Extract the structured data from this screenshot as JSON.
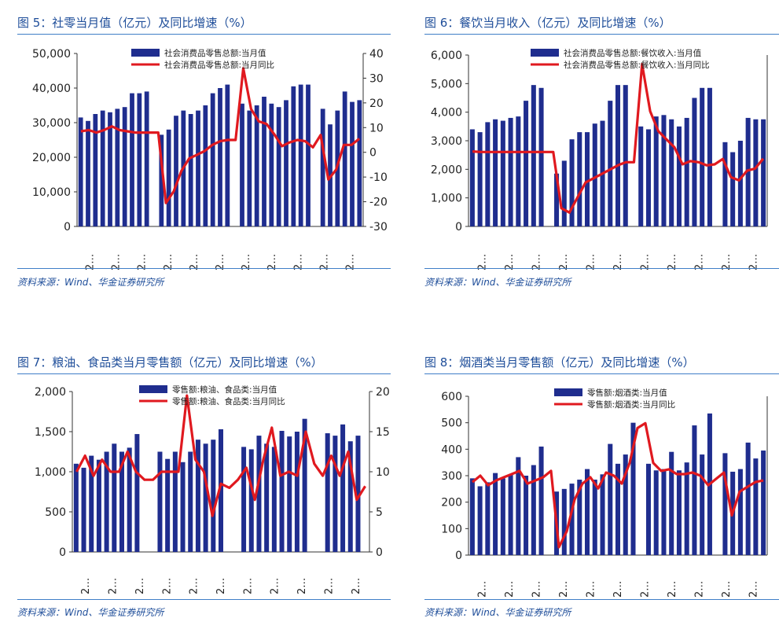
{
  "colors": {
    "bar": "#1f2d8e",
    "line": "#e0191f",
    "title": "#1f4e9a",
    "rule": "#3f7ec7",
    "axis": "#333333"
  },
  "source_text": "资料来源：Wind、华金证券研究所",
  "panels": [
    {
      "title": "图 5：社零当月值（亿元）及同比增速（%）",
      "source": "资料来源：Wind、华金证券研究所",
      "chart_data": {
        "type": "bar",
        "legend": [
          "社会消费品零售总额:当月值",
          "社会消费品零售总额:当月同比"
        ],
        "x_ticks": [
          "2…",
          "2…",
          "2…",
          "2…",
          "2…",
          "2…",
          "2…",
          "2…",
          "2…",
          "2…",
          "2…"
        ],
        "y_left": {
          "min": 0,
          "max": 50000,
          "ticks": [
            "0",
            "10,000",
            "20,000",
            "30,000",
            "40,000",
            "50,000"
          ]
        },
        "y_right": {
          "min": -30,
          "max": 40,
          "ticks": [
            "-30",
            "-20",
            "-10",
            "0",
            "10",
            "20",
            "30",
            "40"
          ]
        },
        "bars": [
          31500,
          30500,
          32500,
          33500,
          33000,
          34000,
          34500,
          38500,
          38500,
          39000,
          0,
          26500,
          28000,
          32000,
          33500,
          32500,
          33500,
          35000,
          38500,
          40000,
          41000,
          0,
          35500,
          33500,
          35000,
          37500,
          35500,
          34500,
          36500,
          40500,
          41000,
          41000,
          0,
          34000,
          29500,
          33500,
          39000,
          36000,
          36500
        ],
        "line": [
          8.5,
          9,
          8,
          9,
          10.5,
          9,
          8.5,
          8,
          8,
          8,
          8,
          -20.5,
          -15.8,
          -7.5,
          -2.5,
          -1,
          0.5,
          3,
          4.5,
          5,
          5,
          34,
          17.5,
          12.5,
          11.5,
          7.3,
          2.5,
          4,
          5,
          4.5,
          2,
          7,
          -11,
          -7,
          3,
          3,
          5.5
        ]
      }
    },
    {
      "title": "图 6：餐饮当月收入（亿元）及同比增速（%）",
      "source": "资料来源：Wind、华金证券研究所",
      "chart_data": {
        "type": "bar",
        "legend": [
          "社会消费品零售总额:餐饮收入:当月值",
          "社会消费品零售总额:餐饮收入:当月同比"
        ],
        "x_ticks": [
          "2…",
          "2…",
          "2…",
          "2…",
          "2…",
          "2…",
          "2…",
          "2…",
          "2…",
          "2…",
          "2…"
        ],
        "y_left": {
          "min": 0,
          "max": 6000,
          "ticks": [
            "0",
            "1,000",
            "2,000",
            "3,000",
            "4,000",
            "5,000",
            "6,000"
          ]
        },
        "y_right": {
          "min": -60,
          "max": 100,
          "ticks": []
        },
        "bars": [
          3400,
          3300,
          3650,
          3750,
          3700,
          3800,
          3850,
          4400,
          4950,
          4850,
          0,
          1850,
          2300,
          3050,
          3300,
          3300,
          3600,
          3700,
          4400,
          4950,
          4950,
          0,
          3500,
          3400,
          3850,
          3900,
          3750,
          3500,
          3800,
          4500,
          4850,
          4850,
          0,
          2950,
          2600,
          3000,
          3800,
          3750,
          3750
        ],
        "line": [
          10,
          9.5,
          9.5,
          9.5,
          9.5,
          9.5,
          9.5,
          9.5,
          9.5,
          9.5,
          9.5,
          -43,
          -47,
          -33,
          -19,
          -15,
          -11,
          -7,
          -3,
          0,
          0,
          91.5,
          47.5,
          29,
          21.5,
          14,
          -2,
          1,
          0,
          -3,
          -2,
          3,
          -14,
          -17,
          -8,
          -6,
          3.3
        ]
      }
    },
    {
      "title": "图 7：粮油、食品类当月零售额（亿元）及同比增速（%）",
      "source": "资料来源：Wind、华金证券研究所",
      "chart_data": {
        "type": "bar",
        "legend": [
          "零售额:粮油、食品类:当月值",
          "零售额:粮油、食品类:当月同比"
        ],
        "x_ticks": [
          "2…",
          "2…",
          "2…",
          "2…",
          "2…",
          "2…",
          "2…",
          "2…",
          "2…",
          "2…",
          "2…"
        ],
        "y_left": {
          "min": 0,
          "max": 2000,
          "ticks": [
            "0",
            "500",
            "1,000",
            "1,500",
            "2,000"
          ]
        },
        "y_right": {
          "min": 0,
          "max": 20,
          "ticks": [
            "0",
            "5",
            "10",
            "15",
            "20"
          ]
        },
        "bars": [
          1100,
          1050,
          1200,
          1150,
          1250,
          1350,
          1250,
          1300,
          1470,
          0,
          0,
          1250,
          1160,
          1250,
          1120,
          1250,
          1400,
          1350,
          1400,
          1530,
          0,
          0,
          1310,
          1280,
          1450,
          1350,
          1310,
          1510,
          1440,
          1500,
          1660,
          0,
          0,
          1480,
          1450,
          1590,
          1380,
          1450,
          0
        ],
        "line": [
          10,
          12,
          9.5,
          11.5,
          10,
          10,
          12.5,
          10,
          9,
          9,
          10,
          10,
          10,
          19.5,
          11.5,
          10,
          4.5,
          8.5,
          8,
          9,
          10.5,
          6.5,
          11.5,
          15.5,
          9.5,
          10,
          9.5,
          15,
          11,
          9.5,
          12,
          9.5,
          12.5,
          6.5,
          8.2
        ]
      }
    },
    {
      "title": "图 8：烟酒类当月零售额（亿元）及同比增速（%）",
      "source": "资料来源：Wind、华金证券研究所",
      "chart_data": {
        "type": "bar",
        "legend": [
          "零售额:烟酒类:当月值",
          "零售额:烟酒类:当月同比"
        ],
        "x_ticks": [
          "2…",
          "2…",
          "2…",
          "2…",
          "2…",
          "2…",
          "2…",
          "2…",
          "2…",
          "2…",
          "2…"
        ],
        "y_left": {
          "min": 0,
          "max": 600,
          "ticks": [
            "0",
            "100",
            "200",
            "300",
            "400",
            "500",
            "600"
          ]
        },
        "y_right": {
          "min": -40,
          "max": 60,
          "ticks": []
        },
        "bars": [
          290,
          260,
          275,
          310,
          290,
          305,
          370,
          300,
          340,
          410,
          0,
          240,
          250,
          270,
          285,
          325,
          285,
          305,
          420,
          345,
          380,
          500,
          0,
          345,
          320,
          325,
          390,
          320,
          350,
          490,
          380,
          535,
          0,
          385,
          315,
          325,
          425,
          365,
          395
        ],
        "line": [
          6,
          10,
          4,
          7,
          9,
          11,
          13,
          5,
          7,
          9,
          13,
          -35,
          -25,
          -5,
          5,
          9,
          2,
          12,
          10,
          5,
          18,
          40,
          43,
          18,
          13,
          14,
          11,
          11,
          12,
          10,
          4,
          8,
          12,
          -15,
          0,
          3,
          6,
          7
        ]
      }
    }
  ]
}
